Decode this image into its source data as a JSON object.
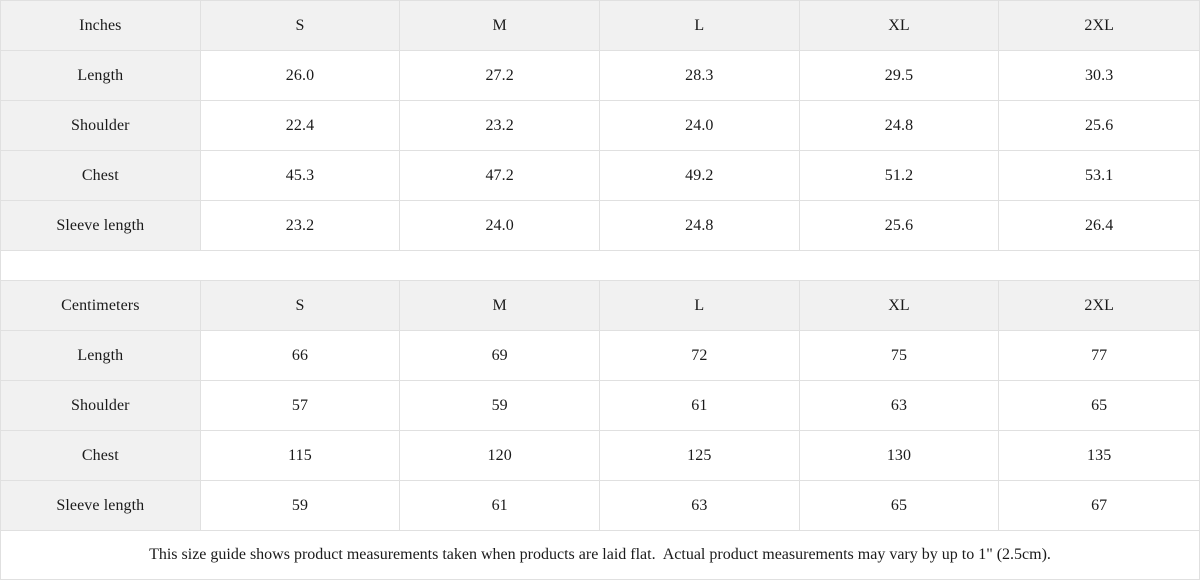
{
  "colors": {
    "shaded_cell_background": "#f1f1f1",
    "border": "#e0e0e0",
    "text": "#1a1a1a",
    "background": "#ffffff"
  },
  "tables": [
    {
      "unit_label": "Inches",
      "size_headers": [
        "S",
        "M",
        "L",
        "XL",
        "2XL"
      ],
      "rows": [
        {
          "label": "Length",
          "values": [
            "26.0",
            "27.2",
            "28.3",
            "29.5",
            "30.3"
          ]
        },
        {
          "label": "Shoulder",
          "values": [
            "22.4",
            "23.2",
            "24.0",
            "24.8",
            "25.6"
          ]
        },
        {
          "label": "Chest",
          "values": [
            "45.3",
            "47.2",
            "49.2",
            "51.2",
            "53.1"
          ]
        },
        {
          "label": "Sleeve length",
          "values": [
            "23.2",
            "24.0",
            "24.8",
            "25.6",
            "26.4"
          ]
        }
      ]
    },
    {
      "unit_label": "Centimeters",
      "size_headers": [
        "S",
        "M",
        "L",
        "XL",
        "2XL"
      ],
      "rows": [
        {
          "label": "Length",
          "values": [
            "66",
            "69",
            "72",
            "75",
            "77"
          ]
        },
        {
          "label": "Shoulder",
          "values": [
            "57",
            "59",
            "61",
            "63",
            "65"
          ]
        },
        {
          "label": "Chest",
          "values": [
            "115",
            "120",
            "125",
            "130",
            "135"
          ]
        },
        {
          "label": "Sleeve length",
          "values": [
            "59",
            "61",
            "63",
            "65",
            "67"
          ]
        }
      ]
    }
  ],
  "footer_note": "This size guide shows product measurements taken when products are laid flat.  Actual product measurements may vary by up to 1\" (2.5cm)."
}
